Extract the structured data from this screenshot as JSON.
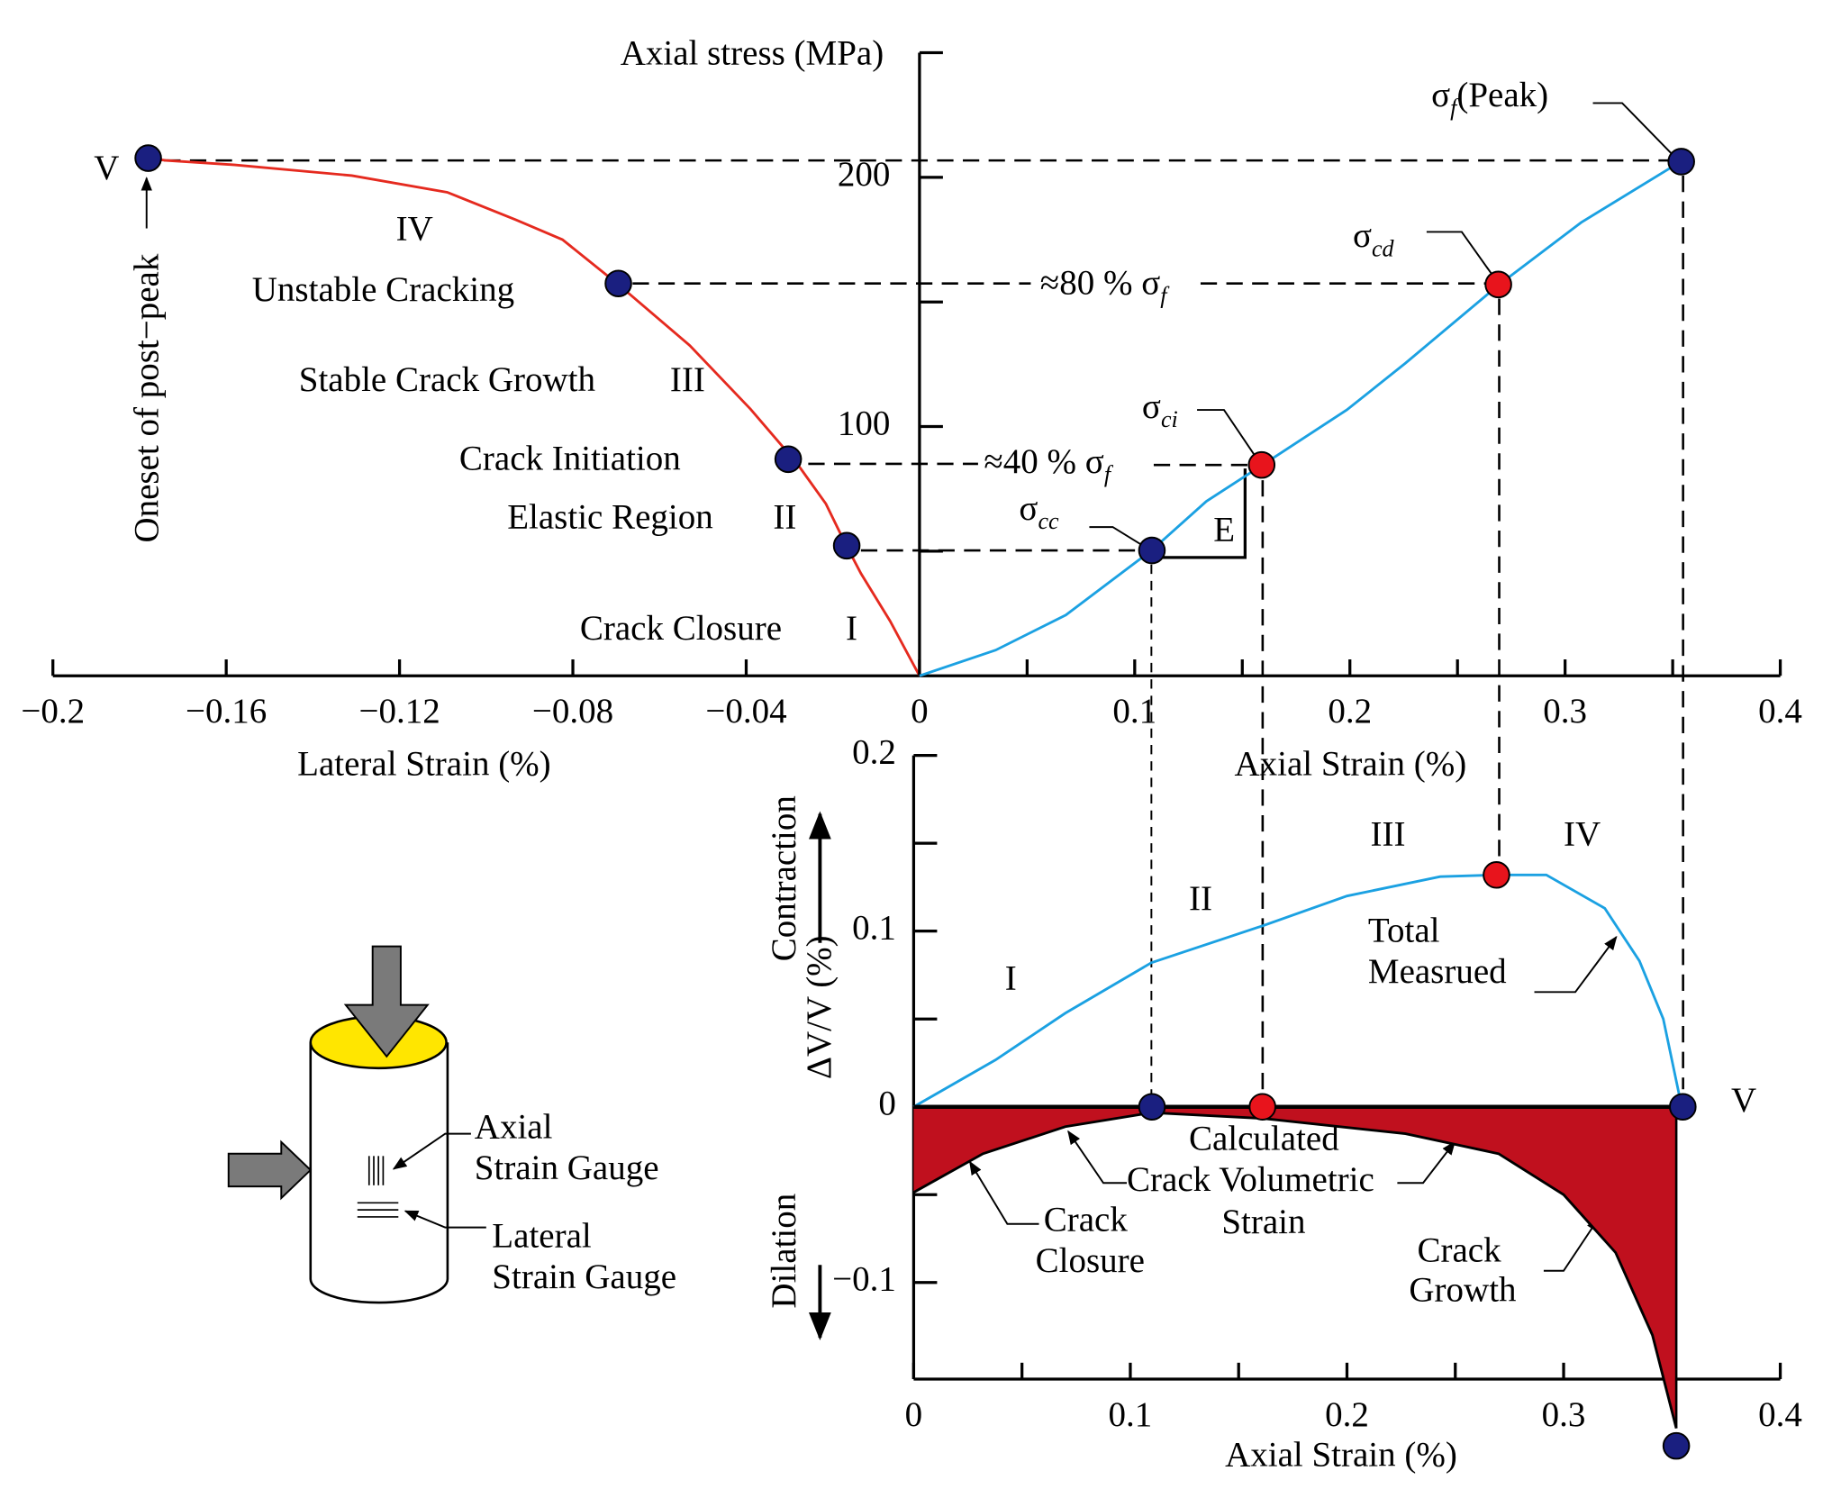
{
  "chart_data": [
    {
      "type": "line",
      "x_label": "Lateral Strain (%)",
      "xlim": [
        -0.2,
        0
      ],
      "xticks": [
        {
          "value": -0.2,
          "label": "−0.2"
        },
        {
          "value": -0.16,
          "label": "−0.16"
        },
        {
          "value": -0.12,
          "label": "−0.12"
        },
        {
          "value": -0.08,
          "label": "−0.08"
        },
        {
          "value": -0.04,
          "label": "−0.04"
        }
      ],
      "ylim": [
        0,
        250
      ],
      "series": [
        {
          "color": "#e52a1f",
          "x": [
            0,
            -0.0068,
            -0.0135,
            -0.017,
            -0.0216,
            -0.0284,
            -0.039,
            -0.053,
            -0.0695,
            -0.0824,
            -0.0932,
            -0.109,
            -0.131,
            -0.158,
            -0.174,
            -0.178
          ],
          "values": [
            0,
            22,
            41,
            52.6,
            69,
            85.5,
            107,
            132.5,
            157,
            175,
            183,
            194,
            200.7,
            205,
            206.8,
            207.7
          ]
        }
      ],
      "points": {
        "x": [
          -0.178,
          -0.0695,
          -0.0303,
          -0.0168
        ],
        "values": [
          207.7,
          157.4,
          86.9,
          52.2
        ],
        "colors": [
          "#1a1f80",
          "#1a1f80",
          "#1a1f80",
          "#1a1f80"
        ]
      },
      "annotations": [
        {
          "text": "V"
        },
        {
          "text": "IV"
        },
        {
          "text": "Unstable Cracking"
        },
        {
          "text": "Stable Crack Growth"
        },
        {
          "text": "III"
        },
        {
          "text": "Crack Initiation"
        },
        {
          "text": "Elastic Region"
        },
        {
          "text": "II"
        },
        {
          "text": "Crack Closure"
        },
        {
          "text": "I"
        },
        {
          "text": "Oneset of post−peak"
        }
      ]
    },
    {
      "type": "line",
      "x_label": "Axial Strain (%)",
      "y_label": "Axial stress (MPa)",
      "xlim": [
        0,
        0.4
      ],
      "xticks": [
        0,
        0.1,
        0.2,
        0.3,
        0.4
      ],
      "xminorticks": [
        0.05,
        0.15,
        0.25,
        0.35
      ],
      "ylim": [
        0,
        250
      ],
      "yticks": [
        100,
        200
      ],
      "yminorticks": [
        50,
        150,
        250
      ],
      "series": [
        {
          "color": "#1ba1e2",
          "x": [
            0,
            0.0354,
            0.068,
            0.1078,
            0.1333,
            0.1594,
            0.1986,
            0.2259,
            0.2694,
            0.3075,
            0.3537
          ],
          "values": [
            0,
            10.3,
            24.4,
            50.3,
            70,
            84.6,
            106.7,
            125.5,
            157,
            181.9,
            206.3
          ]
        }
      ],
      "points": {
        "x": [
          0.108,
          0.159,
          0.269,
          0.354
        ],
        "values": [
          50.3,
          84.6,
          157,
          206.3
        ],
        "colors": [
          "#1a1f80",
          "#e8141c",
          "#e8141c",
          "#1a1f80"
        ]
      },
      "annotations": [
        {
          "text": "σ",
          "sub": "f",
          "suffix": "(Peak)"
        },
        {
          "text": "σ",
          "sub": "cd"
        },
        {
          "text": "σ",
          "sub": "ci"
        },
        {
          "text": "σ",
          "sub": "cc"
        },
        {
          "text": "≈80 % σ",
          "sub": "f"
        },
        {
          "text": "≈40 % σ",
          "sub": "f"
        },
        {
          "text": "E"
        }
      ]
    },
    {
      "type": "line",
      "x_label": "Axial Strain (%)",
      "y_label": "ΔV/V (%)",
      "xlim": [
        0,
        0.4
      ],
      "xticks": [
        0,
        0.1,
        0.2,
        0.3,
        0.4
      ],
      "xminorticks": [
        0.05,
        0.15,
        0.25,
        0.35
      ],
      "ylim": [
        -0.155,
        0.2
      ],
      "yticks": [
        {
          "value": -0.1,
          "label": "−0.1"
        },
        0,
        0.1,
        0.2
      ],
      "yminorticks": [
        -0.05,
        0.05,
        0.15
      ],
      "series": [
        {
          "color": "#1ba1e2",
          "x": [
            0,
            0.0378,
            0.07,
            0.1097,
            0.161,
            0.2,
            0.243,
            0.269,
            0.292,
            0.319,
            0.335,
            0.346,
            0.354
          ],
          "values": [
            0,
            0.0267,
            0.0533,
            0.082,
            0.103,
            0.12,
            0.131,
            0.132,
            0.132,
            0.113,
            0.083,
            0.05,
            0.003
          ]
        },
        {
          "color": "#c0101e",
          "kind": "area",
          "x": [
            0,
            0.032,
            0.07,
            0.11,
            0.162,
            0.227,
            0.27,
            0.3,
            0.324,
            0.341,
            0.352
          ],
          "values": [
            -0.0487,
            -0.0267,
            -0.0113,
            -0.0033,
            -0.0067,
            -0.0153,
            -0.0267,
            -0.05,
            -0.083,
            -0.13,
            -0.183
          ]
        }
      ],
      "points": {
        "x": [
          0.11,
          0.161,
          0.269,
          0.355,
          0.352
        ],
        "values": [
          0,
          0,
          0.132,
          0,
          -0.193
        ],
        "colors": [
          "#1a1f80",
          "#e8141c",
          "#e8141c",
          "#1a1f80",
          "#1a1f80"
        ]
      },
      "annotations": [
        {
          "text": "I"
        },
        {
          "text": "II"
        },
        {
          "text": "III"
        },
        {
          "text": "IV"
        },
        {
          "text": "V"
        },
        {
          "text": "Total"
        },
        {
          "text": "Measrued"
        },
        {
          "text": "Calculated"
        },
        {
          "text": "Crack Volumetric"
        },
        {
          "text": "Strain"
        },
        {
          "text": "Crack"
        },
        {
          "text": "Closure"
        },
        {
          "text": "Crack"
        },
        {
          "text": "Growth"
        },
        {
          "text": "Contraction"
        },
        {
          "text": "Dilation"
        }
      ]
    }
  ],
  "specimen": {
    "labels": [
      "Axial",
      "Strain Gauge",
      "Lateral",
      "Strain Gauge"
    ]
  }
}
